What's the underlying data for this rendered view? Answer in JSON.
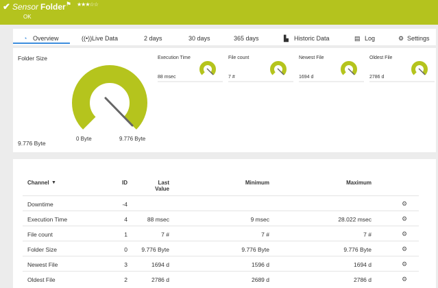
{
  "header": {
    "prefix": "Sensor",
    "name": "Folder",
    "status": "OK"
  },
  "tabs": [
    "Overview",
    "Live Data",
    "2  days",
    "30 days",
    "365 days",
    "Historic Data",
    "Log",
    "Settings"
  ],
  "main_gauge": {
    "title": "Folder Size",
    "value": "9.776 Byte",
    "min_label": "0 Byte",
    "max_label": "9.776 Byte"
  },
  "small_gauges": [
    {
      "title": "Execution Time",
      "value": "88 msec"
    },
    {
      "title": "File count",
      "value": "7 #"
    },
    {
      "title": "Newest File",
      "value": "1694 d"
    },
    {
      "title": "Oldest File",
      "value": "2786 d"
    }
  ],
  "table": {
    "columns": [
      "Channel",
      "ID",
      "Last Value",
      "Minimum",
      "Maximum"
    ],
    "rows": [
      [
        "Downtime",
        "-4",
        "",
        "",
        ""
      ],
      [
        "Execution Time",
        "4",
        "88 msec",
        "9 msec",
        "28.022 msec"
      ],
      [
        "File count",
        "1",
        "7 #",
        "7 #",
        "7 #"
      ],
      [
        "Folder Size",
        "0",
        "9.776 Byte",
        "9.776 Byte",
        "9.776 Byte"
      ],
      [
        "Newest File",
        "3",
        "1694 d",
        "1596 d",
        "1694 d"
      ],
      [
        "Oldest File",
        "2",
        "2786 d",
        "2689 d",
        "2786 d"
      ]
    ]
  }
}
